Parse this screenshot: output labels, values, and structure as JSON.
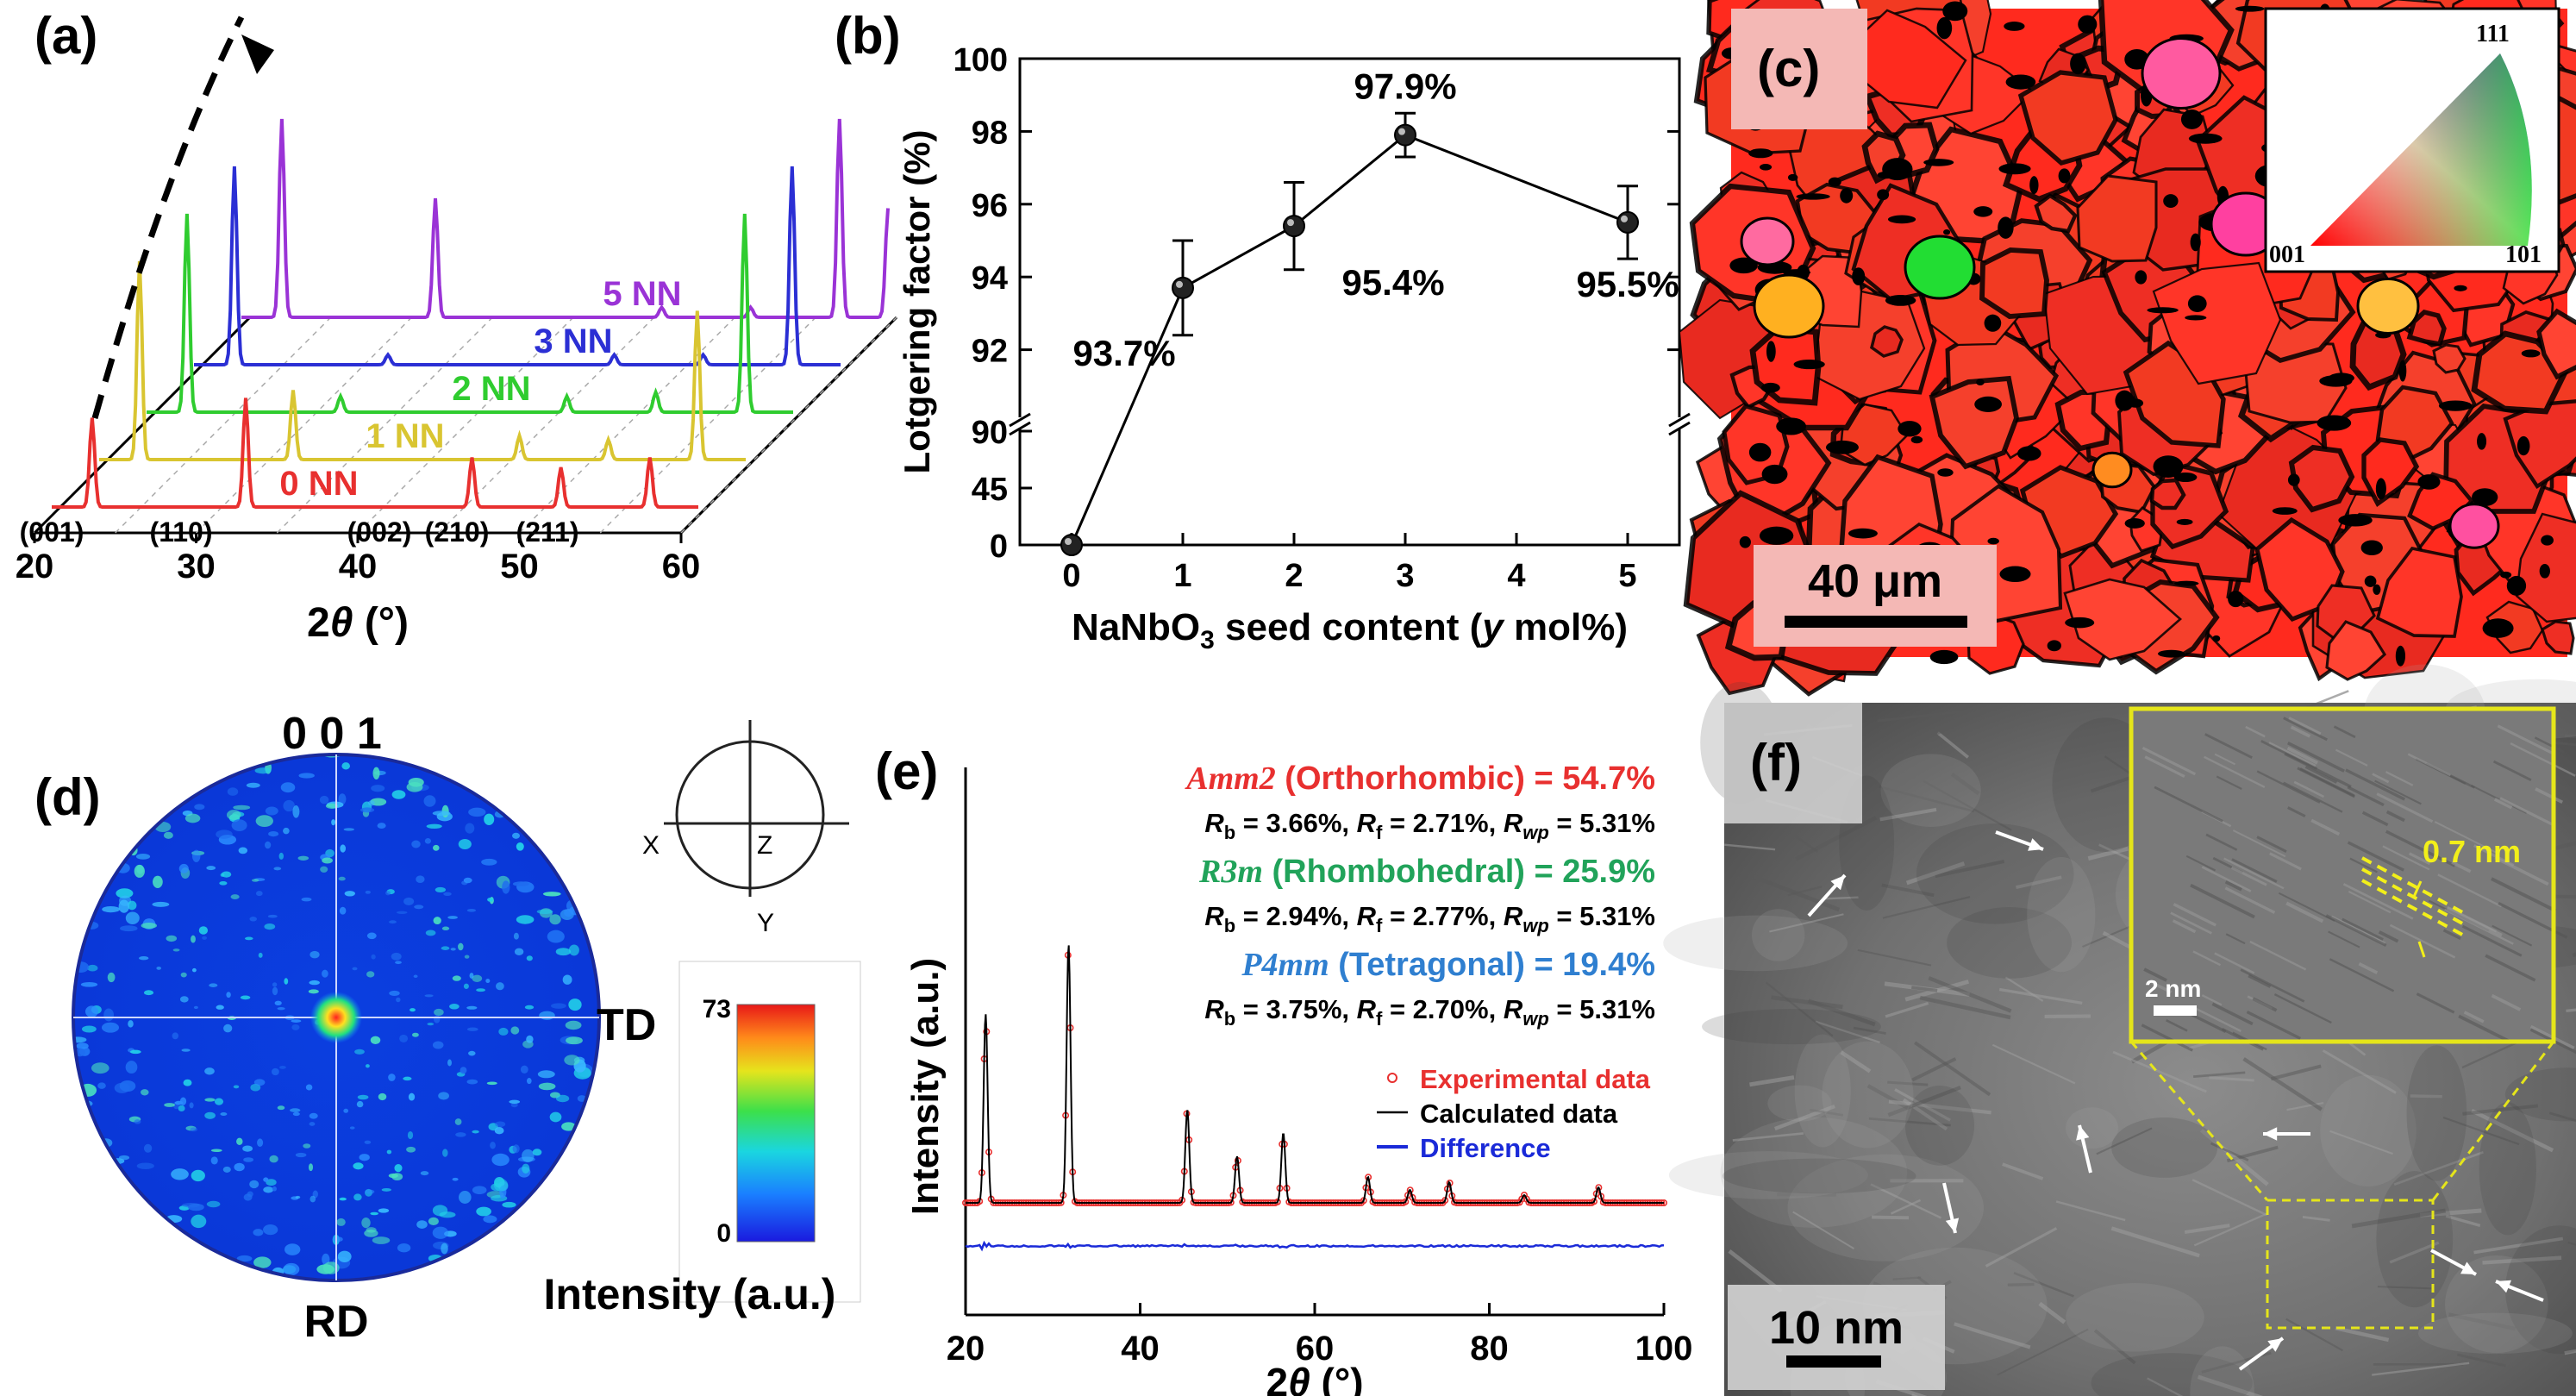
{
  "panels": {
    "a": "(a)",
    "b": "(b)",
    "c": "(c)",
    "d": "(d)",
    "e": "(e)",
    "f": "(f)"
  },
  "chart_data": [
    {
      "panel": "a",
      "type": "line",
      "xlabel_main": "2",
      "xlabel_theta": "θ",
      "xlabel_unit": " (°)",
      "xticks": [
        20,
        30,
        40,
        50,
        60
      ],
      "series": [
        {
          "name": "0 NN",
          "color": "#e8302f",
          "peaks": [
            [
              22.5,
              0.45
            ],
            [
              32,
              0.55
            ],
            [
              46,
              0.25
            ],
            [
              51.5,
              0.2
            ],
            [
              57,
              0.25
            ]
          ]
        },
        {
          "name": "1 NN",
          "color": "#d9c531",
          "peaks": [
            [
              22.5,
              1.0
            ],
            [
              32,
              0.35
            ],
            [
              46,
              0.12
            ],
            [
              51.5,
              0.1
            ],
            [
              57,
              0.75
            ]
          ]
        },
        {
          "name": "2 NN",
          "color": "#2fcc2f",
          "peaks": [
            [
              22.5,
              1.0
            ],
            [
              32,
              0.08
            ],
            [
              46,
              0.08
            ],
            [
              51.5,
              0.1
            ],
            [
              57,
              1.0
            ]
          ]
        },
        {
          "name": "3 NN",
          "color": "#2b2fd4",
          "peaks": [
            [
              22.5,
              1.0
            ],
            [
              32,
              0.05
            ],
            [
              46,
              0.05
            ],
            [
              51.5,
              0.05
            ],
            [
              57,
              1.0
            ]
          ]
        },
        {
          "name": "5 NN",
          "color": "#9a33d6",
          "peaks": [
            [
              22.5,
              1.0
            ],
            [
              32,
              0.6
            ],
            [
              46,
              0.05
            ],
            [
              51.5,
              0.05
            ],
            [
              57,
              1.0
            ],
            [
              60,
              0.55
            ]
          ]
        }
      ],
      "hkl": [
        "(001)",
        "(110)",
        "(002)",
        "(210)",
        "(211)"
      ]
    },
    {
      "panel": "b",
      "type": "line",
      "xlabel_pre": "NaNbO",
      "xlabel_sub": "3",
      "xlabel_post": " seed content (",
      "xlabel_var": "y",
      "xlabel_end": " mol%)",
      "ylabel": "Lotgering factor (%)",
      "x": [
        0,
        1,
        2,
        3,
        5
      ],
      "y": [
        0,
        93.7,
        95.4,
        97.9,
        95.5
      ],
      "yerr": [
        0,
        1.3,
        1.2,
        0.6,
        1.0
      ],
      "data_labels": [
        "",
        "93.7%",
        "95.4%",
        "97.9%",
        "95.5%"
      ],
      "xticks": [
        0,
        1,
        2,
        3,
        4,
        5
      ],
      "yticks_low": [
        0,
        45,
        90
      ],
      "yticks_high": [
        92,
        94,
        96,
        98,
        100
      ],
      "ylim_low": [
        0,
        90
      ],
      "ylim_high": [
        90,
        100
      ]
    },
    {
      "panel": "e",
      "type": "line",
      "ylabel": "Intensity (a.u.)",
      "xlabel_main": "2",
      "xlabel_theta": "θ",
      "xlabel_unit": " (°)",
      "xticks": [
        20,
        40,
        60,
        80,
        100
      ],
      "peaks": [
        [
          22.3,
          0.73
        ],
        [
          31.8,
          1.0
        ],
        [
          45.4,
          0.36
        ],
        [
          51.1,
          0.18
        ],
        [
          56.4,
          0.27
        ],
        [
          66.1,
          0.1
        ],
        [
          70.9,
          0.05
        ],
        [
          75.4,
          0.08
        ],
        [
          84.0,
          0.03
        ],
        [
          92.5,
          0.06
        ]
      ],
      "legend": [
        "Experimental data",
        "Calculated data",
        "Difference"
      ],
      "phases": [
        {
          "name": "Amm2",
          "label": " (Orthorhombic) = 54.7%",
          "color": "#e8302f",
          "rb": "3.66%",
          "rf": "2.71%",
          "rwp": "5.31%"
        },
        {
          "name": "R3m",
          "label": " (Rhombohedral) = 25.9%",
          "color": "#21a35a",
          "rb": "2.94%",
          "rf": "2.77%",
          "rwp": "5.31%"
        },
        {
          "name": "P4mm",
          "label": " (Tetragonal) = 19.4%",
          "color": "#2f7fd0",
          "rb": "3.75%",
          "rf": "2.70%",
          "rwp": "5.31%"
        }
      ]
    }
  ],
  "ebsd": {
    "scale_label": "40 μm",
    "ipf": {
      "top": "111",
      "left": "001",
      "right": "101"
    }
  },
  "pole": {
    "title": "0 0 1",
    "td": "TD",
    "rd": "RD",
    "axes": {
      "x": "X",
      "y": "Y",
      "z": "Z"
    },
    "cbar_max": "73",
    "cbar_min": "0",
    "cbar_label": "Intensity (a.u.)"
  },
  "tem": {
    "scale_label": "10 nm",
    "inset_scale": "2 nm",
    "spacing_label": "0.7 nm"
  }
}
